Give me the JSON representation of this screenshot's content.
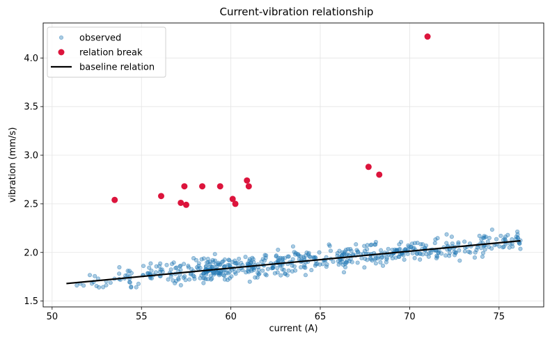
{
  "chart_data": {
    "type": "scatter",
    "title": "Current-vibration relationship",
    "xlabel": "current (A)",
    "ylabel": "vibration (mm/s)",
    "xlim": [
      49.5,
      77.5
    ],
    "ylim": [
      1.44,
      4.36
    ],
    "xticks": [
      50,
      55,
      60,
      65,
      70,
      75
    ],
    "yticks": [
      1.5,
      2.0,
      2.5,
      3.0,
      3.5,
      4.0
    ],
    "xtick_labels": [
      "50",
      "55",
      "60",
      "65",
      "70",
      "75"
    ],
    "ytick_labels": [
      "1.5",
      "2.0",
      "2.5",
      "3.0",
      "3.5",
      "4.0"
    ],
    "grid": true,
    "legend_position": "top-left",
    "legend": [
      "observed",
      "relation break",
      "baseline relation"
    ],
    "series": [
      {
        "name": "observed",
        "kind": "scatter",
        "color": "#1f77b4",
        "approximate": true,
        "note_points": 600,
        "x_range": [
          50.8,
          76.2
        ],
        "trend": {
          "x": [
            50.8,
            76.2
          ],
          "y": [
            1.68,
            2.12
          ]
        },
        "spread": 0.15
      },
      {
        "name": "relation break",
        "kind": "scatter",
        "color": "#dc143c",
        "points": [
          [
            53.5,
            2.54
          ],
          [
            56.1,
            2.58
          ],
          [
            57.2,
            2.51
          ],
          [
            57.4,
            2.68
          ],
          [
            57.5,
            2.49
          ],
          [
            58.4,
            2.68
          ],
          [
            59.4,
            2.68
          ],
          [
            60.1,
            2.55
          ],
          [
            60.25,
            2.5
          ],
          [
            60.9,
            2.74
          ],
          [
            61.0,
            2.68
          ],
          [
            67.7,
            2.88
          ],
          [
            68.3,
            2.8
          ],
          [
            71.0,
            4.22
          ]
        ]
      },
      {
        "name": "baseline relation",
        "kind": "line",
        "color": "#000000",
        "x": [
          50.8,
          76.2
        ],
        "y": [
          1.68,
          2.12
        ]
      }
    ]
  }
}
